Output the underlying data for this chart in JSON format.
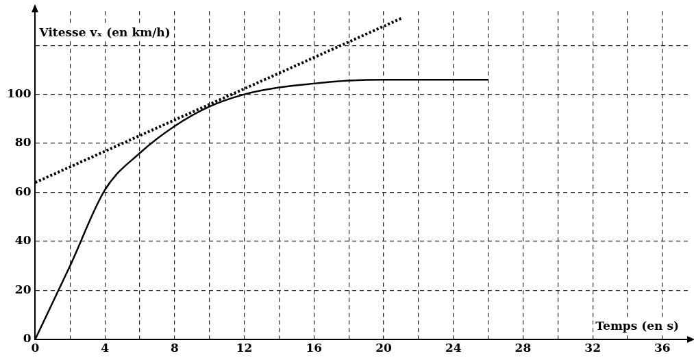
{
  "chart_data": {
    "type": "line",
    "xlabel": "Temps (en s)",
    "ylabel": "Vitesse vₓ (en km/h)",
    "xlim": [
      0,
      37.5
    ],
    "ylim": [
      0,
      134
    ],
    "xticks": [
      0,
      {
        "value": 2,
        "label": null
      },
      4,
      {
        "value": 6,
        "label": null
      },
      8,
      {
        "value": 10,
        "label": null
      },
      12,
      {
        "value": 14,
        "label": null
      },
      16,
      {
        "value": 18,
        "label": null
      },
      20,
      {
        "value": 22,
        "label": null
      },
      24,
      {
        "value": 26,
        "label": null
      },
      28,
      {
        "value": 30,
        "label": null
      },
      32,
      {
        "value": 34,
        "label": null
      },
      36
    ],
    "yticks": [
      0,
      20,
      40,
      60,
      80,
      100,
      {
        "value": 120,
        "label": null
      }
    ],
    "grid": true,
    "legend": false,
    "marker": "none",
    "series": [
      {
        "color": "#000000",
        "line_style": "solid",
        "x": [
          0,
          2,
          4,
          6,
          8,
          10,
          12,
          14,
          16,
          18,
          20,
          22,
          24,
          26
        ],
        "values": [
          0,
          30,
          61,
          76,
          87,
          95,
          100,
          102.8,
          104.4,
          105.6,
          106,
          106,
          106,
          106
        ]
      },
      {
        "color": "#000000",
        "line_style": "dotted",
        "x": [
          0,
          21
        ],
        "values": [
          64,
          131
        ]
      }
    ]
  }
}
